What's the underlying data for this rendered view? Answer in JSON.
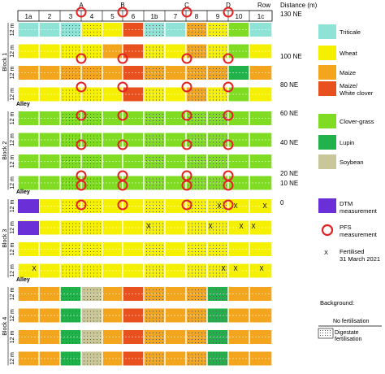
{
  "colors": {
    "triticale": "#8ee3d6",
    "wheat": "#f5f000",
    "maize": "#f2a51d",
    "maize_clover": "#e8501e",
    "clover_grass": "#7fdc23",
    "lupin": "#22b24b",
    "soybean": "#c9c69a",
    "dtm": "#6a2fd6",
    "pfs": "#e32222",
    "grid": "#ffffff",
    "dots": "#555555"
  },
  "header": {
    "columns": [
      "1a",
      "2",
      "3",
      "4",
      "5",
      "6",
      "1b",
      "7",
      "8",
      "9",
      "10",
      "1c"
    ],
    "transects": [
      "A",
      "B",
      "C",
      "D"
    ],
    "row_label": "Row",
    "distance_label": "Distance (m)"
  },
  "distances": [
    "130 NE",
    "100 NE",
    "80 NE",
    "60 NE",
    "40 NE",
    "20 NE",
    "10 NE",
    "0"
  ],
  "blocks": [
    {
      "label": "Block 1",
      "dim_label": "12 m",
      "rows": 4
    },
    {
      "label": "Block 2",
      "dim_label": "12 m",
      "rows": 4
    },
    {
      "label": "Block 3",
      "dim_label": "12 m",
      "rows": 4
    },
    {
      "label": "Block 4",
      "dim_label": "12 m",
      "rows": 4
    }
  ],
  "alley_label": "Alley",
  "legend": {
    "crops": [
      {
        "key": "triticale",
        "label": "Triticale"
      },
      {
        "key": "wheat",
        "label": "Wheat"
      },
      {
        "key": "maize",
        "label": "Maize"
      },
      {
        "key": "maize_clover",
        "label_line1": "Maize/",
        "label_line2": "White clover"
      },
      {
        "key": "clover_grass",
        "label": "Clover-grass"
      },
      {
        "key": "lupin",
        "label": "Lupin"
      },
      {
        "key": "soybean",
        "label": "Soybean"
      }
    ],
    "dtm_line1": "DTM",
    "dtm_line2": "measurement",
    "pfs_line1": "PFS",
    "pfs_line2": "measurement",
    "fert_symbol": "X",
    "fert_line1": "Fertilised",
    "fert_line2": "31 March 2021",
    "background_title": "Background:",
    "no_fert": "No fertilisation",
    "digestate_line1": "Digestate",
    "digestate_line2": "fertilisation"
  }
}
